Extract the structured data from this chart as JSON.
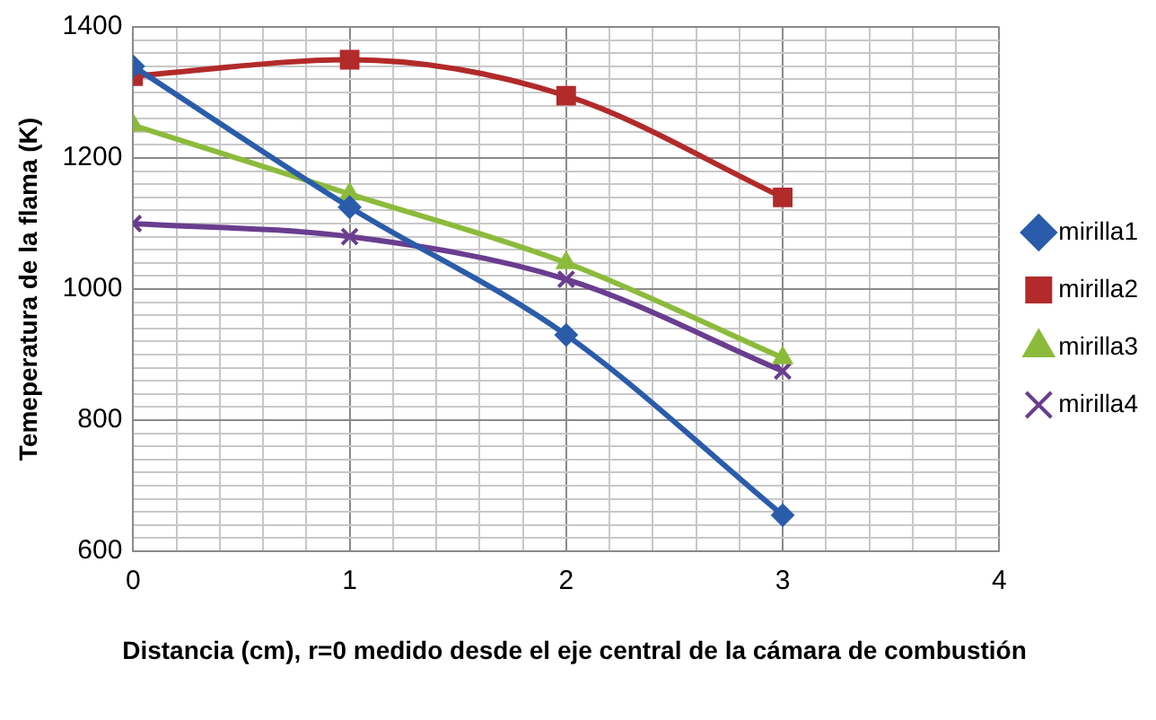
{
  "chart_data": {
    "type": "line",
    "ylabel": "Temeperatura de la flama (K)",
    "xlabel": "Distancia (cm), r=0 medido desde el eje central de la cámara de combustión",
    "x": [
      0,
      1,
      2,
      3
    ],
    "series": [
      {
        "name": "mirilla1",
        "color": "#2a5caa",
        "marker": "diamond",
        "values": [
          1340,
          1125,
          930,
          655
        ]
      },
      {
        "name": "mirilla2",
        "color": "#b22a2a",
        "marker": "square",
        "values": [
          1325,
          1350,
          1295,
          1140
        ]
      },
      {
        "name": "mirilla3",
        "color": "#8cbb3c",
        "marker": "triangle",
        "values": [
          1250,
          1145,
          1040,
          895
        ]
      },
      {
        "name": "mirilla4",
        "color": "#6a3d8f",
        "marker": "cross",
        "values": [
          1100,
          1080,
          1015,
          875
        ]
      }
    ],
    "xlim": [
      0,
      4
    ],
    "xticks": [
      0,
      {
        "value": 0.2,
        "label": null
      },
      {
        "value": 0.4,
        "label": null
      },
      {
        "value": 0.6,
        "label": null
      },
      {
        "value": 0.8,
        "label": null
      },
      1,
      {
        "value": 1.2,
        "label": null
      },
      {
        "value": 1.4,
        "label": null
      },
      {
        "value": 1.6,
        "label": null
      },
      {
        "value": 1.8,
        "label": null
      },
      2,
      {
        "value": 2.2,
        "label": null
      },
      {
        "value": 2.4,
        "label": null
      },
      {
        "value": 2.6,
        "label": null
      },
      {
        "value": 2.8,
        "label": null
      },
      3,
      {
        "value": 3.2,
        "label": null
      },
      {
        "value": 3.4,
        "label": null
      },
      {
        "value": 3.6,
        "label": null
      },
      {
        "value": 3.8,
        "label": null
      },
      4
    ],
    "ylim": [
      600,
      1400
    ],
    "yticks": [
      600,
      {
        "value": 620,
        "label": null
      },
      {
        "value": 640,
        "label": null
      },
      {
        "value": 660,
        "label": null
      },
      {
        "value": 680,
        "label": null
      },
      {
        "value": 700,
        "label": null
      },
      {
        "value": 720,
        "label": null
      },
      {
        "value": 740,
        "label": null
      },
      {
        "value": 760,
        "label": null
      },
      {
        "value": 780,
        "label": null
      },
      800,
      {
        "value": 820,
        "label": null
      },
      {
        "value": 840,
        "label": null
      },
      {
        "value": 860,
        "label": null
      },
      {
        "value": 880,
        "label": null
      },
      {
        "value": 900,
        "label": null
      },
      {
        "value": 920,
        "label": null
      },
      {
        "value": 940,
        "label": null
      },
      {
        "value": 960,
        "label": null
      },
      {
        "value": 980,
        "label": null
      },
      1000,
      {
        "value": 1020,
        "label": null
      },
      {
        "value": 1040,
        "label": null
      },
      {
        "value": 1060,
        "label": null
      },
      {
        "value": 1080,
        "label": null
      },
      {
        "value": 1100,
        "label": null
      },
      {
        "value": 1120,
        "label": null
      },
      {
        "value": 1140,
        "label": null
      },
      {
        "value": 1160,
        "label": null
      },
      {
        "value": 1180,
        "label": null
      },
      1200,
      {
        "value": 1220,
        "label": null
      },
      {
        "value": 1240,
        "label": null
      },
      {
        "value": 1260,
        "label": null
      },
      {
        "value": 1280,
        "label": null
      },
      {
        "value": 1300,
        "label": null
      },
      {
        "value": 1320,
        "label": null
      },
      {
        "value": 1340,
        "label": null
      },
      {
        "value": 1360,
        "label": null
      },
      {
        "value": 1380,
        "label": null
      },
      1400
    ],
    "grid": true,
    "legend": "right",
    "line_style": "solid"
  }
}
